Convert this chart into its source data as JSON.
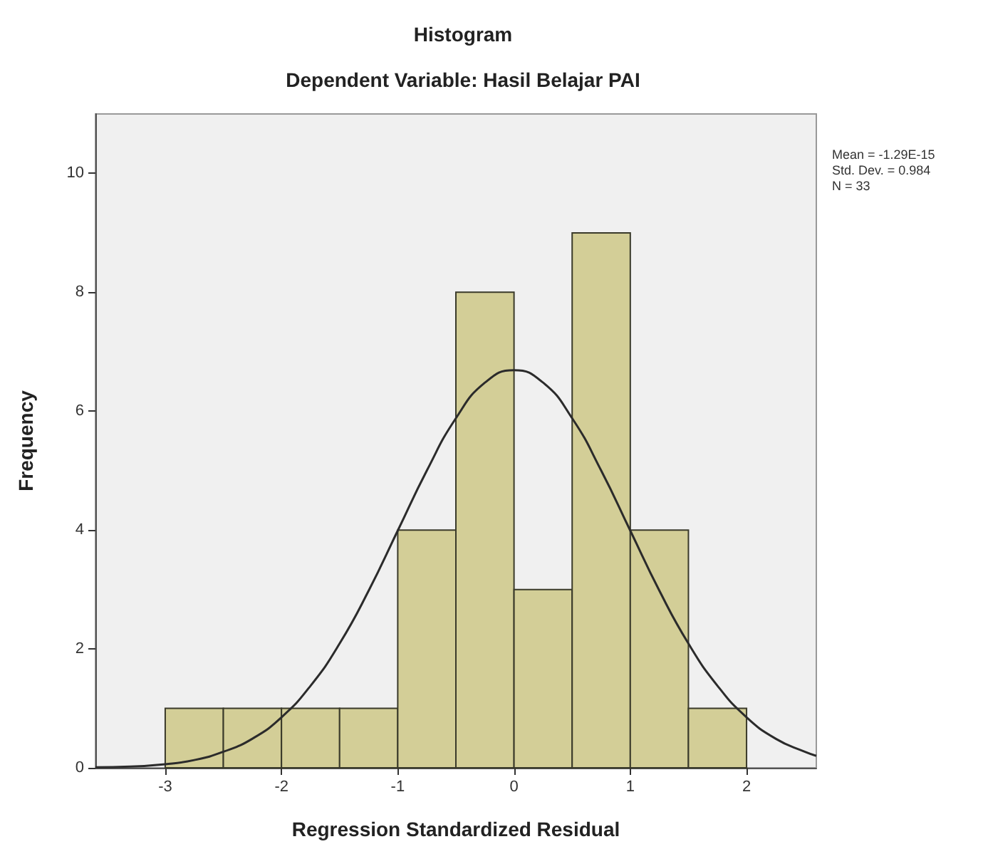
{
  "chart_data": {
    "type": "histogram",
    "title": "Histogram",
    "subtitle": "Dependent Variable: Hasil Belajar PAI",
    "xlabel": "Regression Standardized Residual",
    "ylabel": "Frequency",
    "annotations": [
      "Mean = -1.29E-15",
      "Std. Dev. = 0.984",
      "N = 33"
    ],
    "bins": [
      -3,
      -2.5,
      -2,
      -1.5,
      -1,
      -0.5,
      0,
      0.5,
      1,
      1.5,
      2
    ],
    "series": [
      {
        "color": "#d3ce97",
        "values": [
          1,
          1,
          1,
          1,
          4,
          8,
          3,
          9,
          4,
          1
        ]
      },
      {
        "type": "line",
        "color": "#2b2b2b",
        "marker": "none",
        "x": [
          -3.6,
          -3.3,
          -3,
          -2.75,
          -2.5,
          -2.25,
          -2,
          -1.75,
          -1.5,
          -1.25,
          -1,
          -0.75,
          -0.5,
          -0.25,
          0,
          0.25,
          0.5,
          0.75,
          1,
          1.25,
          1.5,
          1.75,
          2,
          2.25,
          2.5,
          2.6
        ],
        "values": [
          0.01,
          0.02,
          0.06,
          0.13,
          0.27,
          0.49,
          0.85,
          1.38,
          2.09,
          2.98,
          3.99,
          5.0,
          5.88,
          6.48,
          6.69,
          6.48,
          5.88,
          5.0,
          3.99,
          2.98,
          2.09,
          1.38,
          0.85,
          0.49,
          0.27,
          0.2
        ]
      }
    ],
    "xlim": [
      -3.6,
      2.6
    ],
    "xticks": [
      -3,
      -2,
      -1,
      0,
      1,
      2
    ],
    "ylim": [
      0,
      11
    ],
    "yticks": [
      0,
      2,
      4,
      6,
      8,
      10
    ],
    "grid": false
  }
}
